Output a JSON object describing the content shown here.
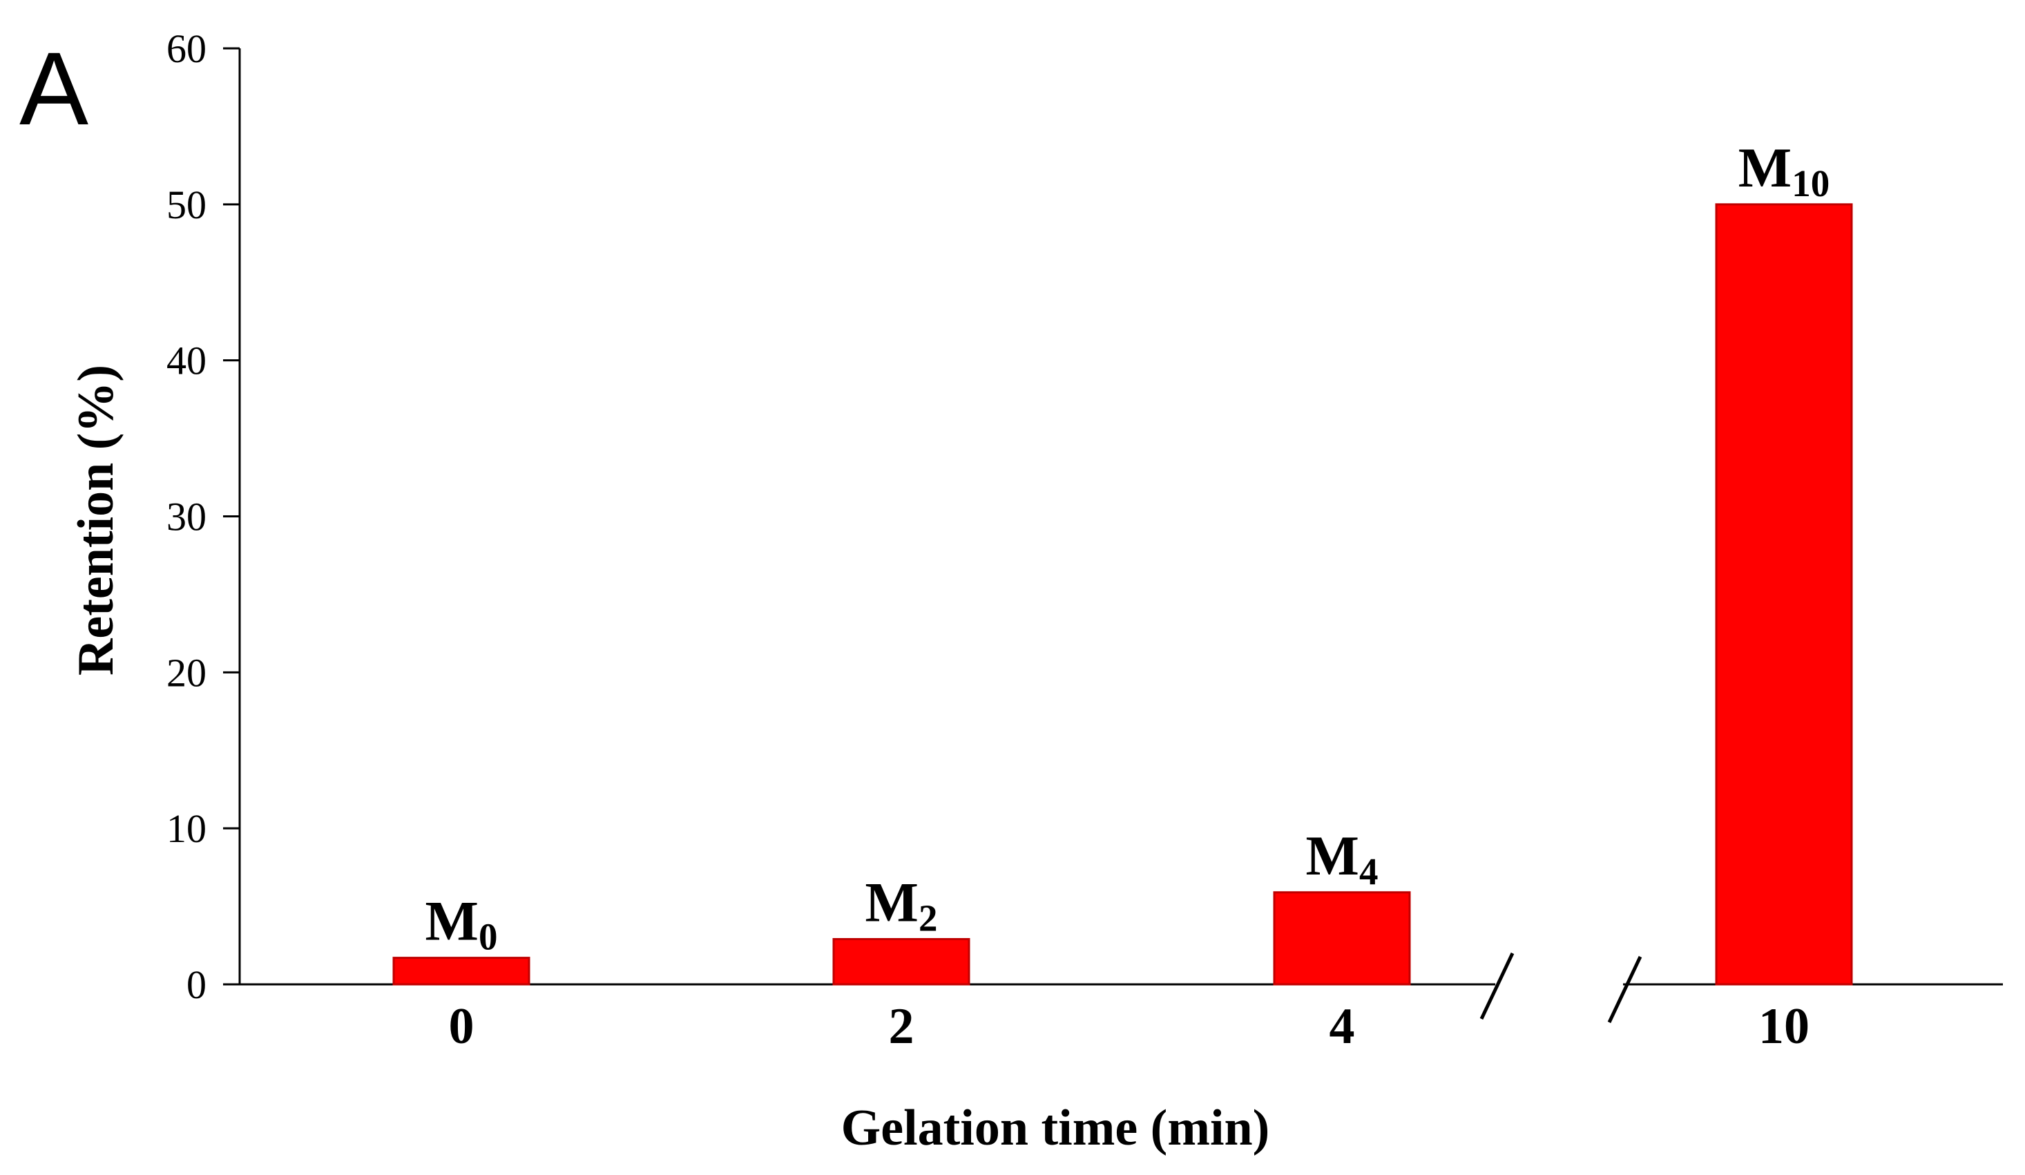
{
  "panel_label": "A",
  "colors": {
    "bar_fill": "#ff0000",
    "bar_stroke": "#c00000",
    "axis": "#000000"
  },
  "chart_data": {
    "type": "bar",
    "title": "",
    "xlabel": "Gelation time (min)",
    "ylabel": "Retention (%)",
    "ylim": [
      0,
      60
    ],
    "yticks": [
      "0",
      "10",
      "20",
      "30",
      "40",
      "50",
      "60"
    ],
    "categories": [
      "0",
      "2",
      "4",
      "10"
    ],
    "values": [
      1.7,
      2.9,
      5.9,
      50
    ],
    "bar_labels": [
      {
        "main": "M",
        "sub": "0"
      },
      {
        "main": "M",
        "sub": "2"
      },
      {
        "main": "M",
        "sub": "4"
      },
      {
        "main": "M",
        "sub": "10"
      }
    ],
    "axis_break_between": [
      "4",
      "10"
    ]
  }
}
